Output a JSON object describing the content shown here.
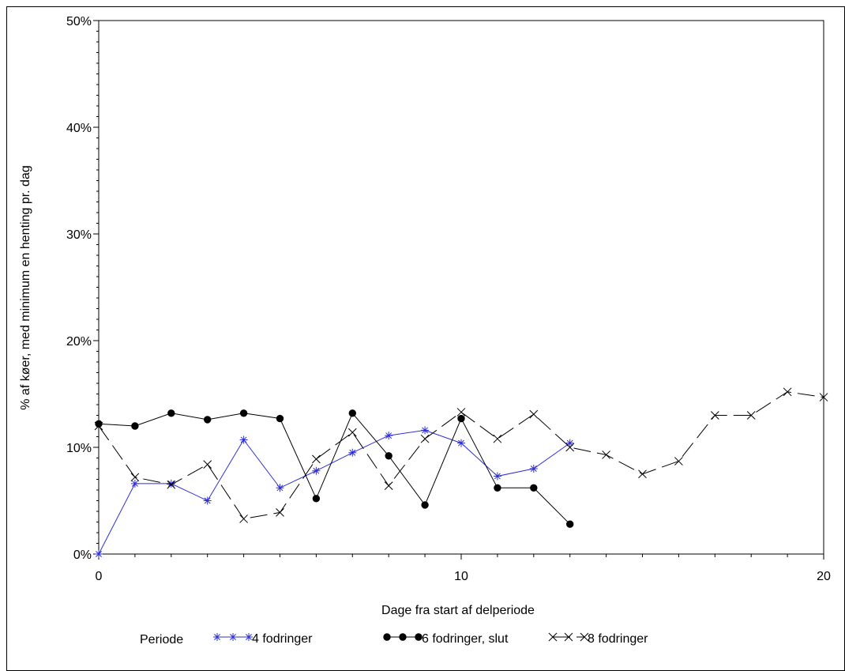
{
  "chart_data": {
    "type": "line",
    "xlabel": "Dage fra start af delperiode",
    "ylabel": "% af køer, med minimum en henting pr. dag",
    "xlim": [
      0,
      20
    ],
    "ylim": [
      0,
      50
    ],
    "x_ticks": [
      "0",
      "10",
      "20"
    ],
    "y_ticks": [
      "0%",
      "10%",
      "20%",
      "30%",
      "40%",
      "50%"
    ],
    "grid": false,
    "legend": {
      "title": "Periode",
      "placement": "bottom"
    },
    "series": [
      {
        "name": "4 fodringer",
        "color": "#2f2fd6",
        "marker": "asterisk",
        "line": "solid",
        "x": [
          0,
          1,
          2,
          3,
          4,
          5,
          6,
          7,
          8,
          9,
          10,
          11,
          12,
          13
        ],
        "y": [
          0,
          6.6,
          6.6,
          5.0,
          10.7,
          6.2,
          7.8,
          9.5,
          11.1,
          11.6,
          10.4,
          7.3,
          8.0,
          10.4
        ]
      },
      {
        "name": "6 fodringer, slut",
        "color": "#000000",
        "marker": "dot",
        "line": "solid",
        "x": [
          0,
          1,
          2,
          3,
          4,
          5,
          6,
          7,
          8,
          9,
          10,
          11,
          12,
          13
        ],
        "y": [
          12.2,
          12.0,
          13.2,
          12.6,
          13.2,
          12.7,
          5.2,
          13.2,
          9.2,
          4.6,
          12.7,
          6.2,
          6.2,
          2.8
        ]
      },
      {
        "name": "8 fodringer",
        "color": "#000000",
        "marker": "x",
        "line": "dashed",
        "x": [
          0,
          1,
          2,
          3,
          4,
          5,
          6,
          7,
          8,
          9,
          10,
          11,
          12,
          13,
          14,
          15,
          16,
          17,
          18,
          19,
          20
        ],
        "y": [
          12.0,
          7.2,
          6.5,
          8.4,
          3.3,
          3.9,
          8.9,
          11.4,
          6.4,
          10.8,
          13.3,
          10.8,
          13.1,
          10.0,
          9.3,
          7.5,
          8.7,
          13.0,
          13.0,
          15.2,
          14.7
        ]
      }
    ]
  }
}
